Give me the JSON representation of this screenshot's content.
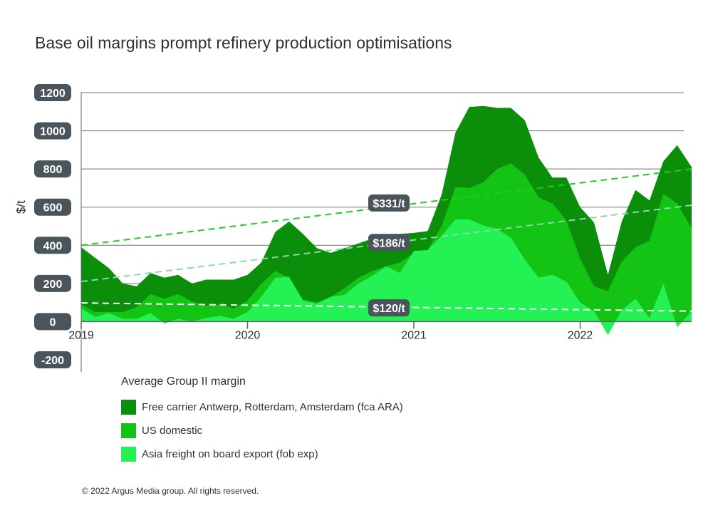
{
  "title": "Base oil margins prompt refinery production optimisations",
  "copyright": "© 2022 Argus Media group. All rights reserved.",
  "legend": {
    "title": "Average Group II margin",
    "items": [
      {
        "label": "Free carrier Antwerp, Rotterdam, Amsterdam (fca ARA)",
        "color": "#0b8f0b"
      },
      {
        "label": "US domestic",
        "color": "#14c414"
      },
      {
        "label": "Asia freight on board export (fob exp)",
        "color": "#24f254"
      }
    ]
  },
  "chart_data": {
    "type": "area",
    "ylabel": "$/t",
    "ylim": [
      -200,
      1200
    ],
    "yticks": [
      "1200",
      "1000",
      "800",
      "600",
      "400",
      "200",
      "0",
      "-200"
    ],
    "ytick_values": [
      1200,
      1000,
      800,
      600,
      400,
      200,
      0,
      -200
    ],
    "xlim": [
      2019,
      2022.67
    ],
    "xticks": [
      "2019",
      "2020",
      "2021",
      "2022"
    ],
    "xtick_values": [
      2019,
      2020,
      2021,
      2022
    ],
    "grid": true,
    "x": [
      2019.0,
      2019.083,
      2019.167,
      2019.25,
      2019.333,
      2019.417,
      2019.5,
      2019.583,
      2019.667,
      2019.75,
      2019.833,
      2019.917,
      2020.0,
      2020.083,
      2020.167,
      2020.25,
      2020.333,
      2020.417,
      2020.5,
      2020.583,
      2020.667,
      2020.75,
      2020.833,
      2020.917,
      2021.0,
      2021.083,
      2021.167,
      2021.25,
      2021.333,
      2021.417,
      2021.5,
      2021.583,
      2021.667,
      2021.75,
      2021.833,
      2021.917,
      2022.0,
      2022.083,
      2022.167,
      2022.25,
      2022.333,
      2022.417,
      2022.5,
      2022.583,
      2022.67
    ],
    "series": [
      {
        "name": "Free carrier Antwerp, Rotterdam, Amsterdam (fca ARA)",
        "color": "#0b8f0b",
        "values": [
          390,
          335,
          280,
          200,
          185,
          255,
          230,
          245,
          200,
          220,
          220,
          220,
          245,
          310,
          470,
          525,
          460,
          385,
          360,
          385,
          410,
          435,
          450,
          460,
          465,
          475,
          665,
          990,
          1125,
          1130,
          1120,
          1120,
          1055,
          860,
          755,
          755,
          600,
          520,
          245,
          525,
          690,
          635,
          840,
          925,
          810
        ]
      },
      {
        "name": "US domestic",
        "color": "#14c414",
        "values": [
          90,
          50,
          50,
          50,
          75,
          145,
          120,
          145,
          105,
          85,
          90,
          70,
          110,
          200,
          265,
          230,
          115,
          100,
          130,
          175,
          230,
          265,
          290,
          310,
          360,
          375,
          500,
          705,
          700,
          730,
          800,
          830,
          770,
          650,
          620,
          530,
          330,
          185,
          160,
          315,
          390,
          425,
          670,
          620,
          490
        ]
      },
      {
        "name": "Asia freight on board export (fob exp)",
        "color": "#24f254",
        "values": [
          70,
          25,
          45,
          15,
          15,
          45,
          -10,
          15,
          0,
          20,
          30,
          15,
          50,
          130,
          230,
          235,
          110,
          95,
          130,
          140,
          200,
          240,
          290,
          255,
          370,
          375,
          450,
          535,
          535,
          505,
          485,
          440,
          325,
          230,
          245,
          210,
          100,
          55,
          -70,
          60,
          120,
          20,
          200,
          -30,
          55
        ]
      }
    ],
    "trendlines": [
      {
        "label": "$331/t",
        "color": "#22cc22",
        "from": [
          2019,
          400
        ],
        "to": [
          2022.67,
          800
        ],
        "label_at": [
          2020.85,
          622
        ]
      },
      {
        "label": "$186/t",
        "color": "#8fd6a8",
        "from": [
          2019,
          210
        ],
        "to": [
          2022.67,
          610
        ],
        "label_at": [
          2020.85,
          415
        ]
      },
      {
        "label": "$120/t",
        "color": "#ffffff",
        "from": [
          2019,
          98
        ],
        "to": [
          2022.67,
          55
        ],
        "label_at": [
          2020.85,
          72
        ]
      }
    ]
  }
}
